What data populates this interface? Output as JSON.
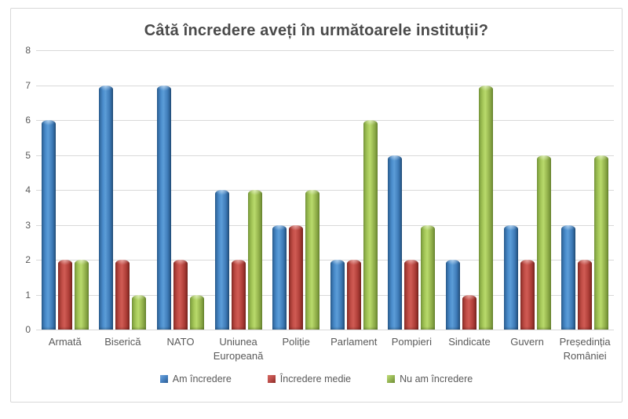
{
  "window": {
    "background": "#ffffff",
    "border_color": "#d8d8d8"
  },
  "chart_data": {
    "type": "bar",
    "title": "Câtă încredere aveți în următoarele instituții?",
    "title_color": "#4a4a4a",
    "text_color": "#595959",
    "gridline_color": "#d9d9d9",
    "categories": [
      "Armată",
      "Biserică",
      "NATO",
      "Uniunea Europeană",
      "Poliție",
      "Parlament",
      "Pompieri",
      "Sindicate",
      "Guvern",
      "Președinția României"
    ],
    "series": [
      {
        "name": "Am încredere",
        "color": "#4f81bd",
        "values": [
          6,
          7,
          7,
          4,
          3,
          2,
          5,
          2,
          3,
          3
        ]
      },
      {
        "name": "Încredere medie",
        "color": "#c0504d",
        "values": [
          2,
          2,
          2,
          2,
          3,
          2,
          2,
          1,
          2,
          2
        ]
      },
      {
        "name": "Nu am încredere",
        "color": "#9bbb59",
        "values": [
          2,
          1,
          1,
          4,
          4,
          6,
          3,
          7,
          5,
          5
        ]
      }
    ],
    "xlabel": "",
    "ylabel": "",
    "ylim": [
      0,
      8
    ],
    "yticks": [
      0,
      1,
      2,
      3,
      4,
      5,
      6,
      7,
      8
    ],
    "grid": true,
    "legend_position": "bottom"
  }
}
